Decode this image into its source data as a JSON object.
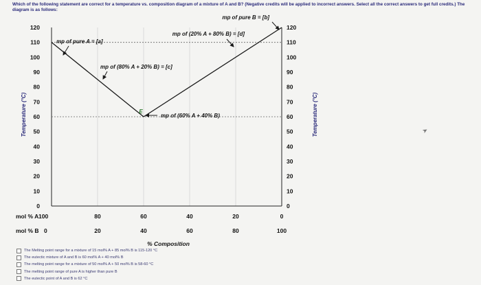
{
  "question": "Which of the following statement are correct for a temperature vs. composition diagram of a mixture of A and B? (Negative credits will be applied to incorrect answers. Select all the correct answers to get full credits.) The diagram is as follows:",
  "chart_data": {
    "type": "line",
    "ylabel_left": "Temperature (°C)",
    "ylabel_right": "Temperature (°C)",
    "yticks": [
      "0",
      "10",
      "20",
      "30",
      "40",
      "50",
      "60",
      "70",
      "80",
      "90",
      "100",
      "110",
      "120"
    ],
    "ylim": [
      0,
      120
    ],
    "xrow_A_label": "mol % A",
    "xrow_A_ticks": [
      "100",
      "80",
      "60",
      "40",
      "20",
      "0"
    ],
    "xrow_B_label": "mol % B",
    "xrow_B_ticks": [
      "0",
      "20",
      "40",
      "60",
      "80",
      "100"
    ],
    "xlabel": "% Composition",
    "xlim": [
      0,
      100
    ],
    "series": [
      {
        "x": [
          0,
          40
        ],
        "y": [
          110,
          60
        ]
      },
      {
        "x": [
          40,
          100
        ],
        "y": [
          60,
          120
        ]
      }
    ],
    "eutectic": {
      "x": 40,
      "y": 60,
      "label": "E"
    },
    "dashed_lines": [
      {
        "y": 110,
        "from_x": 0,
        "to_x": 100
      },
      {
        "y": 60,
        "from_x": 0,
        "to_x": 100
      }
    ],
    "annotations": [
      {
        "text": "mp of pure B = [b]",
        "x": 100,
        "y": 120
      },
      {
        "text": "mp of (20% A + 80% B) = [d]",
        "x": 80,
        "y": 100
      },
      {
        "text": "mp of pure A = [a]",
        "x": 0,
        "y": 110
      },
      {
        "text": "mp of (80% A + 20% B) = [c]",
        "x": 20,
        "y": 85
      },
      {
        "text": "mp of (60% A + 40% B)",
        "x": 40,
        "y": 60
      }
    ]
  },
  "options": [
    "The Melting point range for a mixture of 15 mol% A + 85 mol% B is 115-120 °C",
    "The eutectic mixture of A and B is 60 mol% A + 40 mol% B",
    "The melting point range for a mixture of 50 mol% A + 50 mol% B is 58-60 °C",
    "The melting point range of pure A is higher than pure B",
    "The eutectic point of A and B is 62 °C"
  ]
}
